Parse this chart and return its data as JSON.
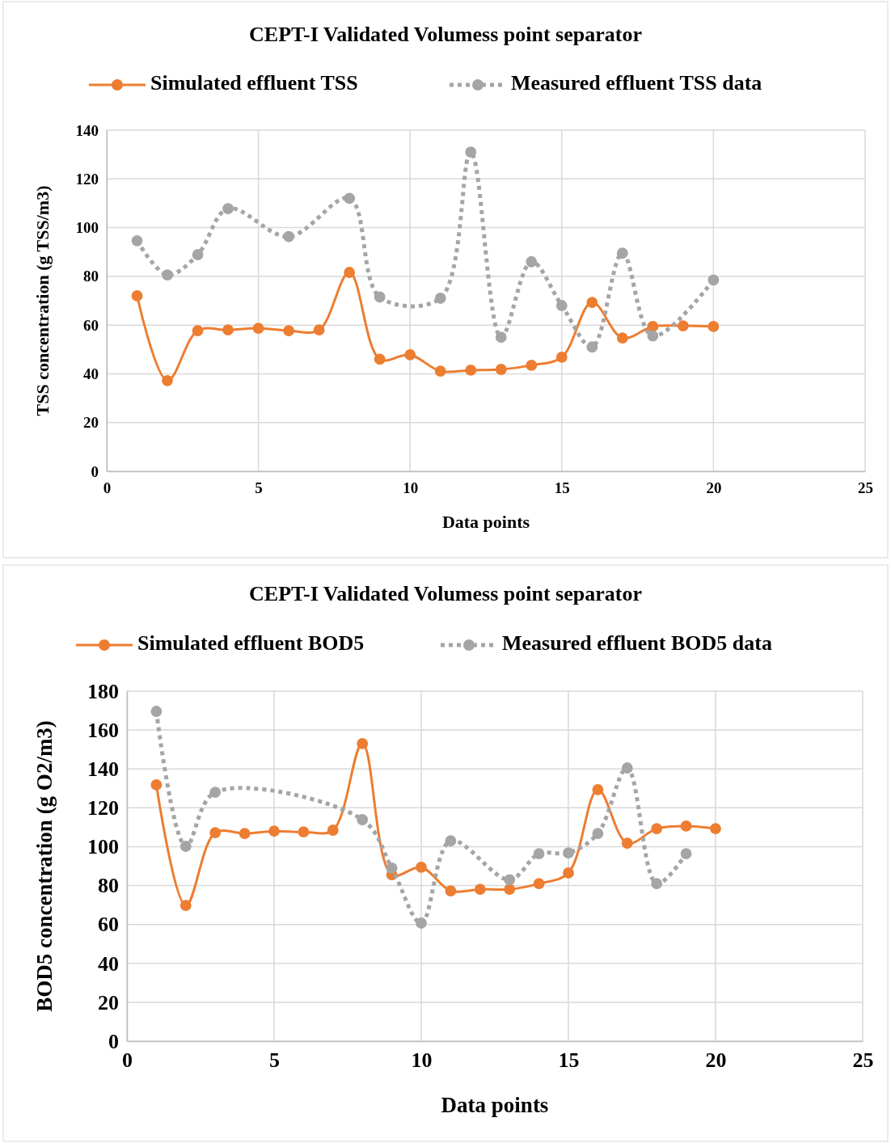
{
  "chart_data": [
    {
      "type": "line",
      "title": "CEPT-I Validated Volumess point separator",
      "xlabel": "Data points",
      "ylabel": "TSS concentration (g TSS/m3)",
      "xlim": [
        0,
        25
      ],
      "xticks": [
        0,
        5,
        10,
        15,
        20,
        25
      ],
      "ylim": [
        0,
        140
      ],
      "yticks": [
        0,
        20,
        40,
        60,
        80,
        100,
        120,
        140
      ],
      "grid": true,
      "legend": "top",
      "series": [
        {
          "name": "Simulated effluent TSS",
          "color": "#ed7d31",
          "marker": "circle",
          "line_style": "solid",
          "x": [
            1,
            2,
            3,
            4,
            5,
            6,
            7,
            8,
            9,
            10,
            11,
            12,
            13,
            14,
            15,
            16,
            17,
            18,
            19,
            20
          ],
          "values": [
            72,
            37.2,
            57.7,
            58,
            58.7,
            57.7,
            58,
            81.6,
            46,
            47.8,
            41.1,
            41.5,
            41.8,
            43.5,
            46.8,
            69.3,
            54.7,
            59.4,
            59.7,
            59.4
          ]
        },
        {
          "name": "Measured effluent TSS data",
          "color": "#a5a5a5",
          "marker": "circle",
          "line_style": "dotted",
          "x": [
            1,
            2,
            3,
            4,
            6,
            8,
            9,
            11,
            12,
            13,
            14,
            15,
            16,
            17,
            18,
            20
          ],
          "values": [
            94.6,
            80.6,
            88.9,
            107.8,
            96.3,
            112,
            71.5,
            71,
            131,
            55,
            86,
            68,
            51,
            89.5,
            55.5,
            78.5
          ]
        }
      ]
    },
    {
      "type": "line",
      "title": "CEPT-I Validated Volumess point separator",
      "xlabel": "Data points",
      "ylabel": "BOD5 concentration (g O2/m3)",
      "xlim": [
        0,
        25
      ],
      "xticks": [
        0,
        5,
        10,
        15,
        20,
        25
      ],
      "ylim": [
        0,
        180
      ],
      "yticks": [
        0,
        20,
        40,
        60,
        80,
        100,
        120,
        140,
        160,
        180
      ],
      "grid": true,
      "legend": "top",
      "series": [
        {
          "name": "Simulated effluent BOD5",
          "color": "#ed7d31",
          "marker": "circle",
          "line_style": "solid",
          "x": [
            1,
            2,
            3,
            4,
            5,
            6,
            7,
            8,
            9,
            10,
            11,
            12,
            13,
            14,
            15,
            16,
            17,
            18,
            19,
            20
          ],
          "values": [
            131.8,
            69.8,
            107.2,
            106.8,
            108,
            107.6,
            108.5,
            153,
            85.6,
            89.4,
            77.3,
            78.1,
            78.1,
            81,
            86.5,
            129.3,
            101.8,
            109.3,
            110.6,
            109.3
          ]
        },
        {
          "name": "Measured effluent BOD5 data",
          "color": "#a5a5a5",
          "marker": "circle",
          "line_style": "dotted",
          "x": [
            1,
            2,
            3,
            8,
            9,
            10,
            11,
            13,
            14,
            15,
            16,
            17,
            18,
            19
          ],
          "values": [
            169.6,
            100.2,
            128,
            113.9,
            89,
            60.7,
            103,
            83,
            96.4,
            96.8,
            106.8,
            140.5,
            81,
            96.4
          ]
        }
      ]
    }
  ]
}
